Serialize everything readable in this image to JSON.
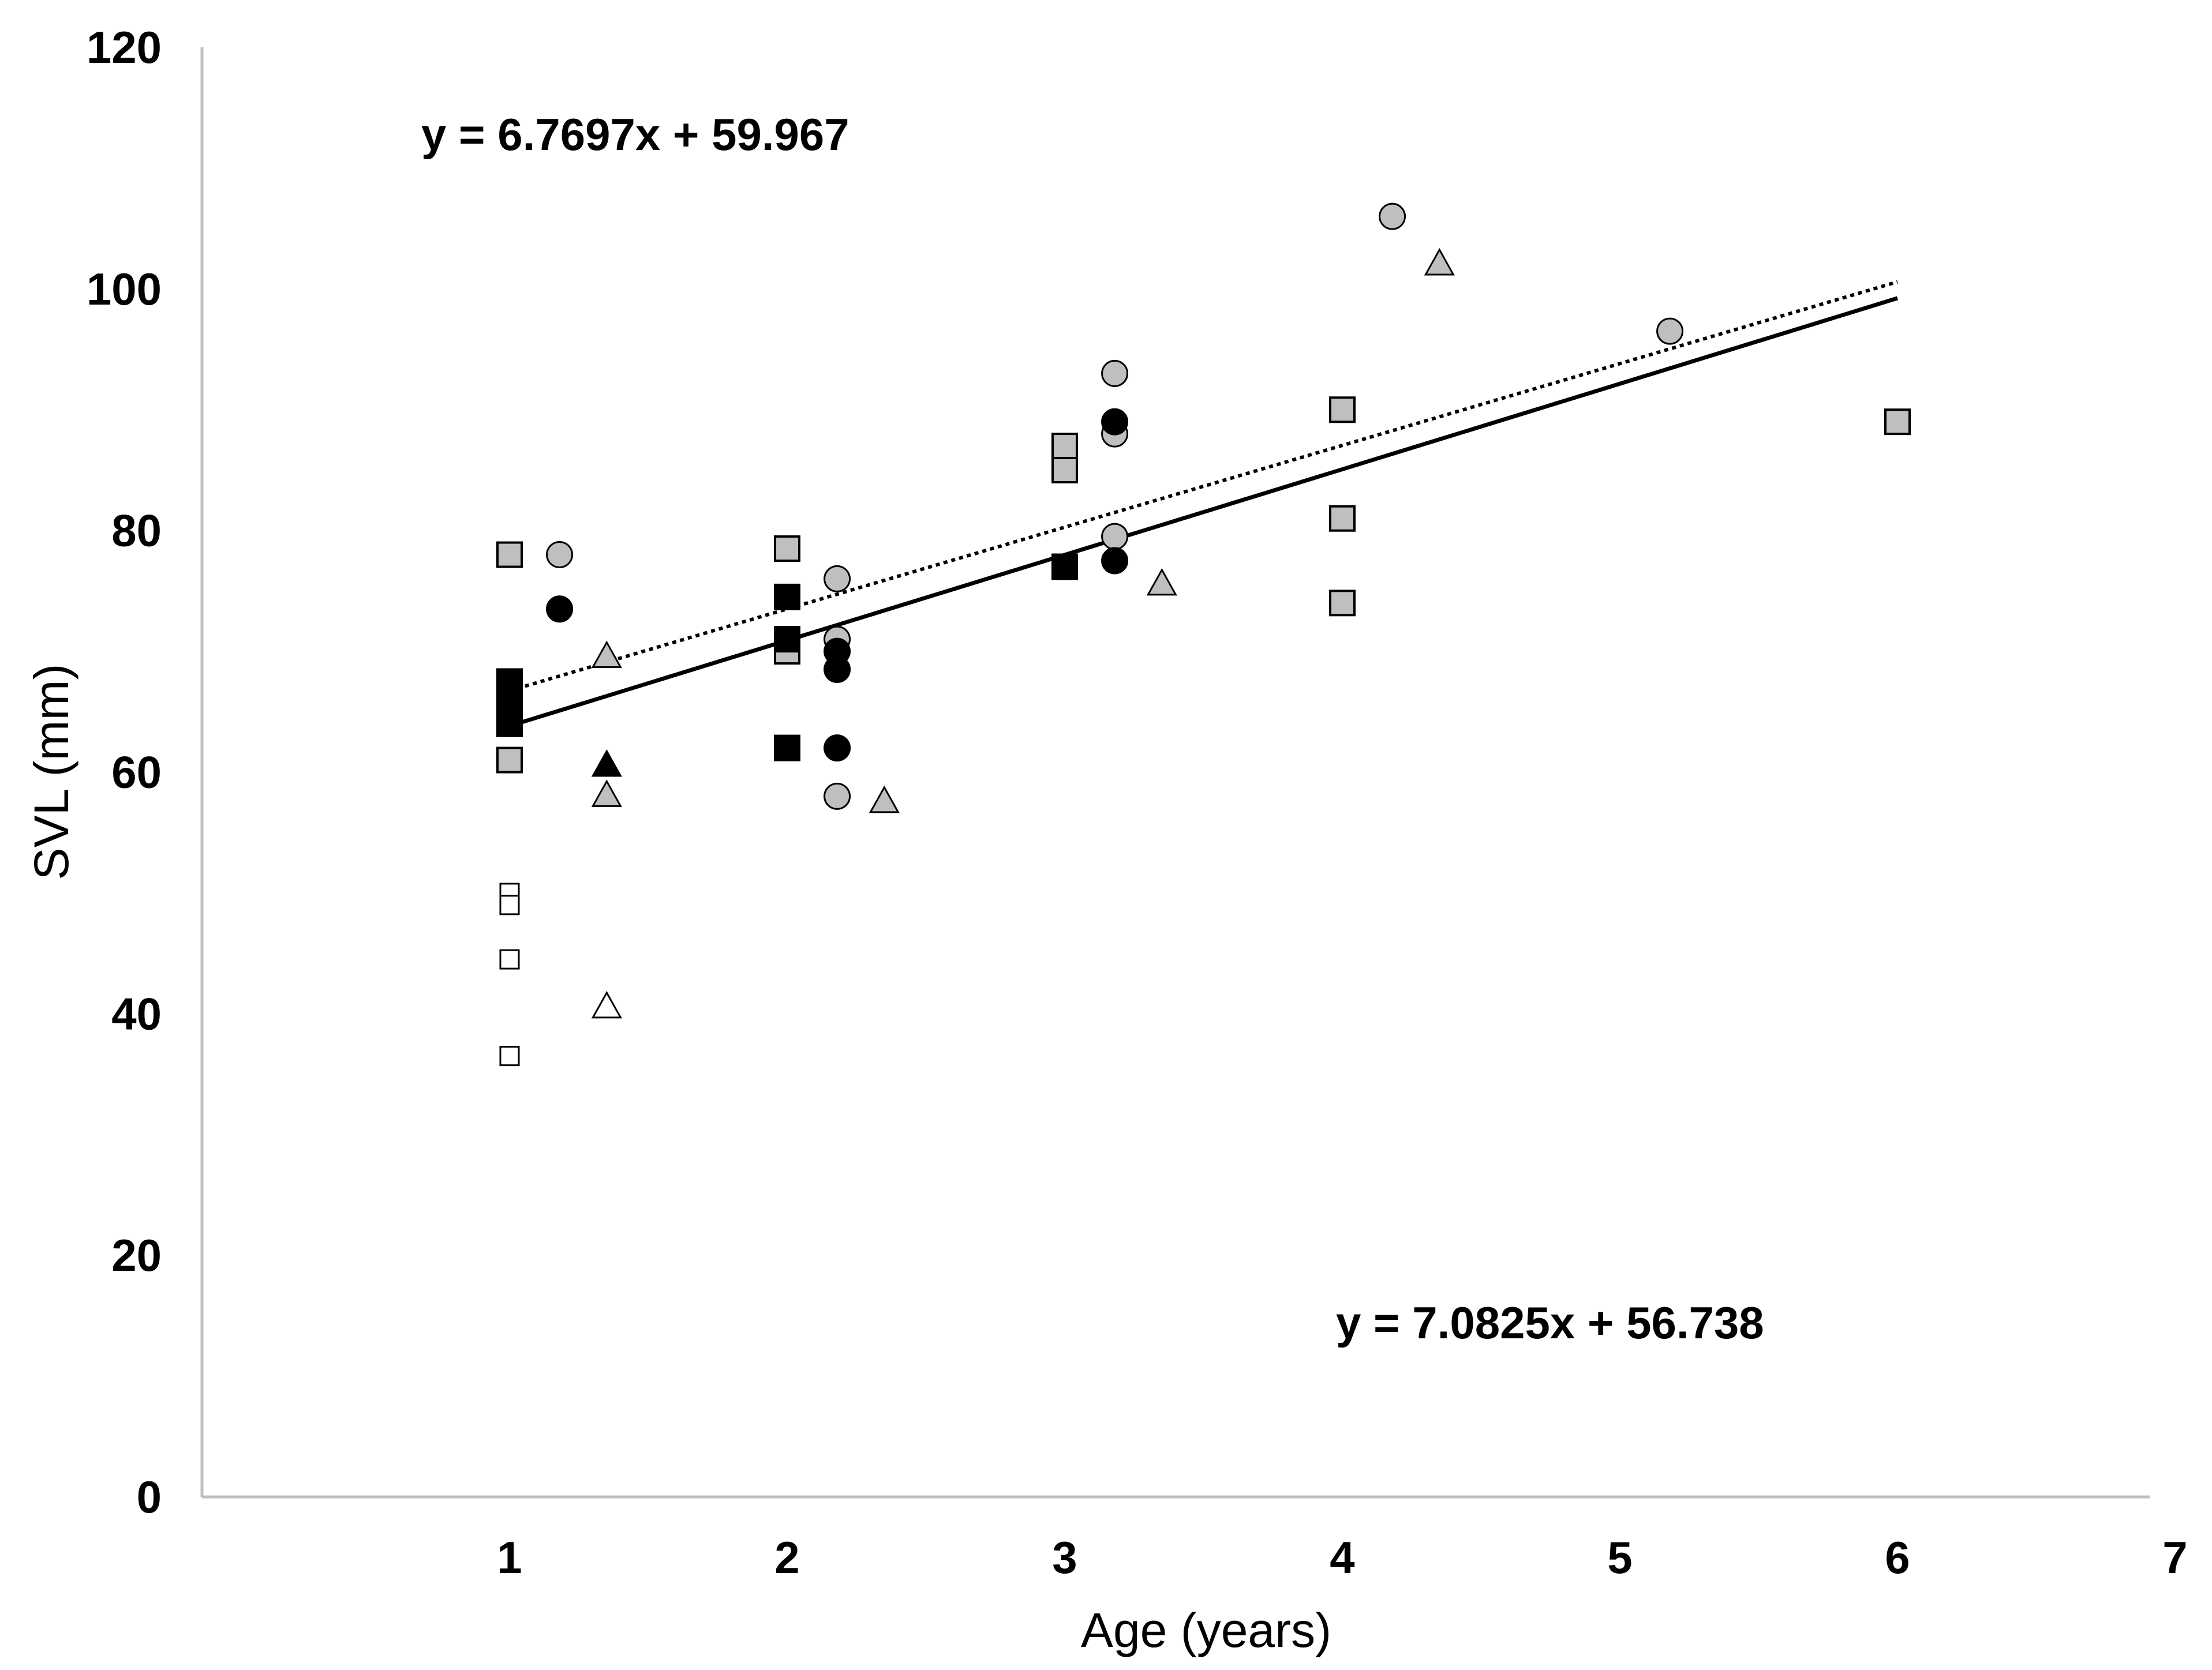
{
  "chart_data": {
    "type": "scatter",
    "title": "",
    "xlabel": "Age (years)",
    "ylabel": "SVL (mm)",
    "xlim": [
      0,
      7
    ],
    "ylim": [
      0,
      120
    ],
    "xticks": [
      "1",
      "2",
      "3",
      "4",
      "5",
      "6",
      "7"
    ],
    "yticks": [
      "0",
      "20",
      "40",
      "60",
      "80",
      "100",
      "120"
    ],
    "grid": false,
    "series": [
      {
        "name": "squares-gray",
        "marker": "square",
        "fill": "#bfbfbf",
        "points": [
          [
            1,
            78
          ],
          [
            1,
            61
          ],
          [
            2,
            78.5
          ],
          [
            2,
            70
          ],
          [
            3,
            87
          ],
          [
            3,
            85
          ],
          [
            4,
            90
          ],
          [
            4,
            81
          ],
          [
            4,
            74
          ],
          [
            6,
            89
          ]
        ]
      },
      {
        "name": "squares-black",
        "marker": "square",
        "fill": "#000000",
        "points": [
          [
            1,
            67.5
          ],
          [
            1,
            66
          ],
          [
            1,
            64
          ],
          [
            2,
            74.5
          ],
          [
            2,
            71
          ],
          [
            2,
            62
          ],
          [
            3,
            77
          ]
        ]
      },
      {
        "name": "squares-open",
        "marker": "square",
        "fill": "#ffffff",
        "small": true,
        "points": [
          [
            1,
            50
          ],
          [
            1,
            49
          ],
          [
            1,
            44.5
          ],
          [
            1,
            36.5
          ]
        ]
      },
      {
        "name": "circles-gray",
        "marker": "circle",
        "fill": "#bfbfbf",
        "points": [
          [
            1.18,
            78
          ],
          [
            2.18,
            76
          ],
          [
            2.18,
            71
          ],
          [
            2.18,
            58
          ],
          [
            3.18,
            93
          ],
          [
            3.18,
            88
          ],
          [
            3.18,
            79.5
          ],
          [
            4.18,
            106
          ],
          [
            5.18,
            96.5
          ]
        ]
      },
      {
        "name": "circles-black",
        "marker": "circle",
        "fill": "#000000",
        "points": [
          [
            1.18,
            73.5
          ],
          [
            2.18,
            70
          ],
          [
            2.18,
            68.5
          ],
          [
            2.18,
            62
          ],
          [
            3.18,
            89
          ],
          [
            3.18,
            77.5
          ]
        ]
      },
      {
        "name": "triangles-gray",
        "marker": "triangle",
        "fill": "#bfbfbf",
        "points": [
          [
            1.35,
            69.5
          ],
          [
            1.35,
            58
          ],
          [
            2.35,
            57.5
          ],
          [
            3.35,
            75.5
          ],
          [
            4.35,
            102
          ]
        ]
      },
      {
        "name": "triangles-black",
        "marker": "triangle",
        "fill": "#000000",
        "points": [
          [
            1.35,
            60.5
          ]
        ]
      },
      {
        "name": "triangles-open",
        "marker": "triangle",
        "fill": "#ffffff",
        "points": [
          [
            1.35,
            40.5
          ]
        ]
      }
    ],
    "trendlines": [
      {
        "name": "dotted-fit",
        "style": "dotted",
        "slope": 6.7697,
        "intercept": 59.967,
        "x_range": [
          1,
          6
        ]
      },
      {
        "name": "solid-fit",
        "style": "solid",
        "slope": 7.0825,
        "intercept": 56.738,
        "x_range": [
          1,
          6
        ]
      }
    ],
    "annotations": [
      {
        "name": "equation-dotted",
        "text": "y = 6.7697x + 59.967"
      },
      {
        "name": "equation-solid",
        "text": "y = 7.0825x + 56.738"
      }
    ]
  }
}
